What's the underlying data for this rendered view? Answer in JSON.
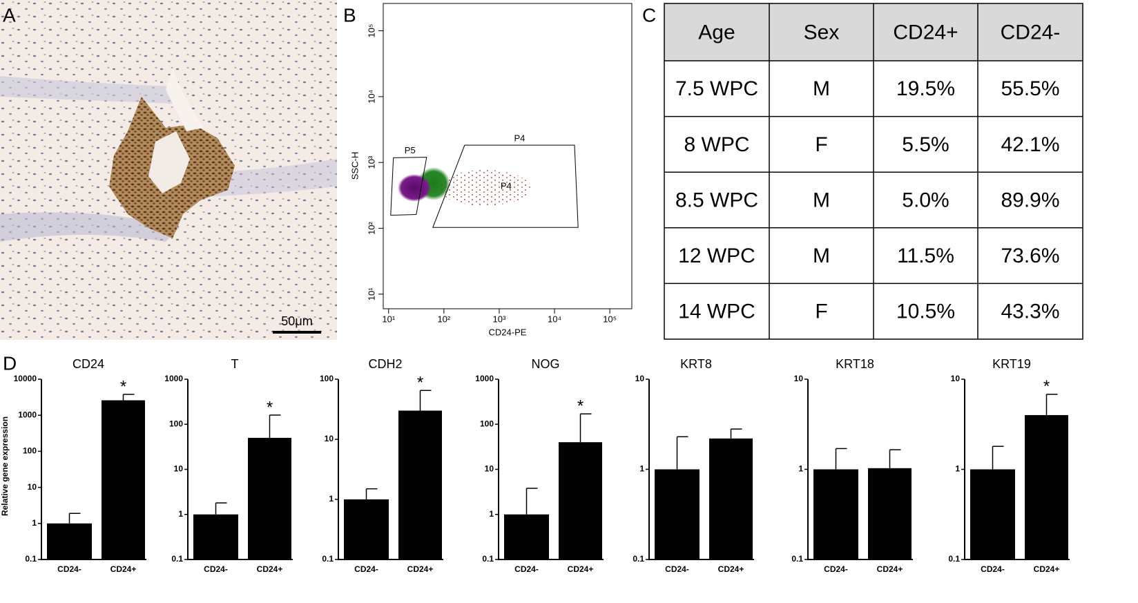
{
  "panel_labels": [
    "A",
    "B",
    "C",
    "D"
  ],
  "image": {
    "scale_bar_label": "50μm"
  },
  "table": {
    "header": [
      "Age",
      "Sex",
      "CD24+",
      "CD24-"
    ],
    "rows": [
      [
        "7.5 WPC",
        "M",
        "19.5%",
        "55.5%"
      ],
      [
        "8 WPC",
        "F",
        "5.5%",
        "42.1%"
      ],
      [
        "8.5 WPC",
        "M",
        "5.0%",
        "89.9%"
      ],
      [
        "12 WPC",
        "M",
        "11.5%",
        "73.6%"
      ],
      [
        "14 WPC",
        "F",
        "10.5%",
        "43.3%"
      ]
    ]
  },
  "chart_data": [
    {
      "type": "scatter",
      "xlabel": "CD24-PE",
      "ylabel": "SSC-H",
      "log_scale": true,
      "xlim": [
        8,
        250000
      ],
      "ylim": [
        6,
        260000
      ],
      "xticks": [
        {
          "value": 10,
          "label": "10¹"
        },
        {
          "value": 100,
          "label": "10²"
        },
        {
          "value": 1000,
          "label": "10³"
        },
        {
          "value": 10000,
          "label": "10⁴"
        },
        {
          "value": 100000,
          "label": "10⁵"
        }
      ],
      "yticks": [
        {
          "value": 10,
          "label": "10¹"
        },
        {
          "value": 100,
          "label": "10²"
        },
        {
          "value": 1000,
          "label": "10³"
        },
        {
          "value": 10000,
          "label": "10⁴"
        },
        {
          "value": 100000,
          "label": "10⁵"
        }
      ],
      "gates": [
        {
          "name": "P5",
          "x": [
            12.2,
            48.7,
            31.6,
            10.9
          ],
          "y": [
            1180,
            1200,
            162,
            158
          ]
        },
        {
          "name": "P4",
          "x": [
            237,
            23000,
            26700,
            63
          ],
          "y": [
            1830,
            1830,
            103,
            103
          ]
        }
      ],
      "population_labels": [
        {
          "text": "P4",
          "x": 1330,
          "y": 430
        }
      ]
    },
    {
      "type": "bar",
      "title": "CD24",
      "ylabel": "Relative gene expression",
      "categories": [
        "CD24-",
        "CD24+"
      ],
      "values": [
        1,
        2600
      ],
      "errors": [
        0.9,
        1200
      ],
      "color": "#000000",
      "log_scale": true,
      "ylim": [
        0.1,
        10000
      ],
      "yticks": [
        0.1,
        1,
        10,
        100,
        1000,
        10000
      ],
      "annotations": [
        {
          "index": 1,
          "text": "*"
        }
      ]
    },
    {
      "type": "bar",
      "title": "T",
      "categories": [
        "CD24-",
        "CD24+"
      ],
      "values": [
        1,
        50
      ],
      "errors": [
        0.8,
        110
      ],
      "color": "#000000",
      "log_scale": true,
      "ylim": [
        0.1,
        1000
      ],
      "yticks": [
        0.1,
        1,
        10,
        100,
        1000
      ],
      "annotations": [
        {
          "index": 1,
          "text": "*"
        }
      ]
    },
    {
      "type": "bar",
      "title": "CDH2",
      "categories": [
        "CD24-",
        "CD24+"
      ],
      "values": [
        1,
        30
      ],
      "errors": [
        0.5,
        35
      ],
      "color": "#000000",
      "log_scale": true,
      "ylim": [
        0.1,
        100
      ],
      "yticks": [
        0.1,
        1,
        10,
        100
      ],
      "annotations": [
        {
          "index": 1,
          "text": "*"
        }
      ]
    },
    {
      "type": "bar",
      "title": "NOG",
      "categories": [
        "CD24-",
        "CD24+"
      ],
      "values": [
        1,
        40
      ],
      "errors": [
        2.8,
        130
      ],
      "color": "#000000",
      "log_scale": true,
      "ylim": [
        0.1,
        1000
      ],
      "yticks": [
        0.1,
        1,
        10,
        100,
        1000
      ],
      "annotations": [
        {
          "index": 1,
          "text": "*"
        }
      ]
    },
    {
      "type": "bar",
      "title": "KRT8",
      "categories": [
        "CD24-",
        "CD24+"
      ],
      "values": [
        1,
        2.2
      ],
      "errors": [
        1.3,
        0.6
      ],
      "color": "#000000",
      "log_scale": true,
      "ylim": [
        0.1,
        10
      ],
      "yticks": [
        0.1,
        1,
        10
      ]
    },
    {
      "type": "bar",
      "title": "KRT18",
      "categories": [
        "CD24-",
        "CD24+"
      ],
      "values": [
        1,
        1.03
      ],
      "errors": [
        0.7,
        0.62
      ],
      "color": "#000000",
      "log_scale": true,
      "ylim": [
        0.1,
        10
      ],
      "yticks": [
        0.1,
        1,
        10
      ]
    },
    {
      "type": "bar",
      "title": "KRT19",
      "categories": [
        "CD24-",
        "CD24+"
      ],
      "values": [
        1,
        4
      ],
      "errors": [
        0.8,
        2.8
      ],
      "color": "#000000",
      "log_scale": true,
      "ylim": [
        0.1,
        10
      ],
      "yticks": [
        0.1,
        1,
        10
      ],
      "annotations": [
        {
          "index": 1,
          "text": "*"
        }
      ]
    }
  ]
}
